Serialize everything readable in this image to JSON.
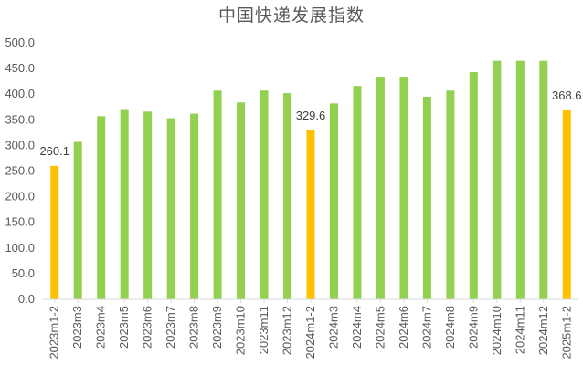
{
  "chart_data": {
    "type": "bar",
    "title": "中国快递发展指数",
    "xlabel": "",
    "ylabel": "",
    "ylim": [
      0,
      500
    ],
    "yticks": [
      "0.0",
      "50.0",
      "100.0",
      "150.0",
      "200.0",
      "250.0",
      "300.0",
      "350.0",
      "400.0",
      "450.0",
      "500.0"
    ],
    "grid": false,
    "legend": "none",
    "colors": {
      "normal": "#92d050",
      "highlight": "#ffc000"
    },
    "categories": [
      "2023m1-2",
      "2023m3",
      "2023m4",
      "2023m5",
      "2023m6",
      "2023m7",
      "2023m8",
      "2023m9",
      "2023m10",
      "2023m11",
      "2023m12",
      "2024m1-2",
      "2024m3",
      "2024m4",
      "2024m5",
      "2024m6",
      "2024m7",
      "2024m8",
      "2024m9",
      "2024m10",
      "2024m11",
      "2024m12",
      "2025m1-2"
    ],
    "values": [
      260.1,
      307,
      357,
      371,
      366,
      353,
      362,
      407,
      384,
      407,
      402,
      329.6,
      382,
      416,
      434,
      434,
      395,
      407,
      443,
      465,
      465,
      465,
      368.6
    ],
    "highlighted": [
      true,
      false,
      false,
      false,
      false,
      false,
      false,
      false,
      false,
      false,
      false,
      true,
      false,
      false,
      false,
      false,
      false,
      false,
      false,
      false,
      false,
      false,
      true
    ],
    "data_labels": [
      "260.1",
      "",
      "",
      "",
      "",
      "",
      "",
      "",
      "",
      "",
      "",
      "329.6",
      "",
      "",
      "",
      "",
      "",
      "",
      "",
      "",
      "",
      "",
      "368.6"
    ]
  }
}
